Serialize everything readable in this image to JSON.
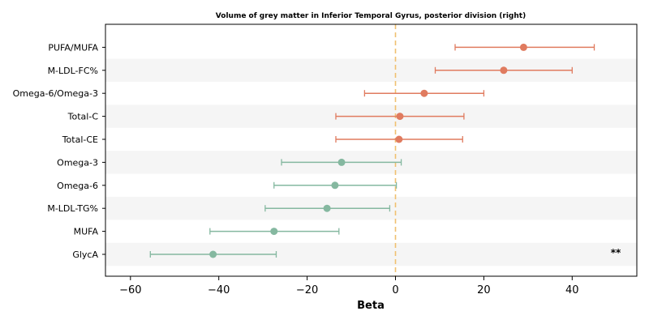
{
  "chart_data": {
    "type": "forest",
    "title": "Volume of grey matter in Inferior Temporal Gyrus, posterior division (right)",
    "xlabel": "Beta",
    "ylabel": "",
    "xlim": [
      -66,
      55
    ],
    "xticks": [
      -60,
      -40,
      -20,
      0,
      20,
      40
    ],
    "xtick_labels": [
      "−60",
      "−40",
      "−20",
      "0",
      "20",
      "40"
    ],
    "reference_line": 0,
    "grid": false,
    "colors": {
      "positive": "#e07b5f",
      "negative": "#85b8a0",
      "reference": "#f0c070",
      "band": "#f5f5f5"
    },
    "rows": [
      {
        "label": "PUFA/MUFA",
        "beta": 29.0,
        "lower": 13.5,
        "upper": 45.0
      },
      {
        "label": "M-LDL-FC%",
        "beta": 24.5,
        "lower": 9.0,
        "upper": 40.0
      },
      {
        "label": "Omega-6/Omega-3",
        "beta": 6.5,
        "lower": -7.0,
        "upper": 20.0
      },
      {
        "label": "Total-C",
        "beta": 1.0,
        "lower": -13.5,
        "upper": 15.5
      },
      {
        "label": "Total-CE",
        "beta": 0.8,
        "lower": -13.5,
        "upper": 15.2
      },
      {
        "label": "Omega-3",
        "beta": -12.2,
        "lower": -25.8,
        "upper": 1.3
      },
      {
        "label": "Omega-6",
        "beta": -13.7,
        "lower": -27.5,
        "upper": 0.2
      },
      {
        "label": "M-LDL-TG%",
        "beta": -15.5,
        "lower": -29.5,
        "upper": -1.3
      },
      {
        "label": "MUFA",
        "beta": -27.5,
        "lower": -42.0,
        "upper": -12.8
      },
      {
        "label": "GlycA",
        "beta": -41.3,
        "lower": -55.5,
        "upper": -27.0,
        "annotation": "**"
      }
    ]
  }
}
